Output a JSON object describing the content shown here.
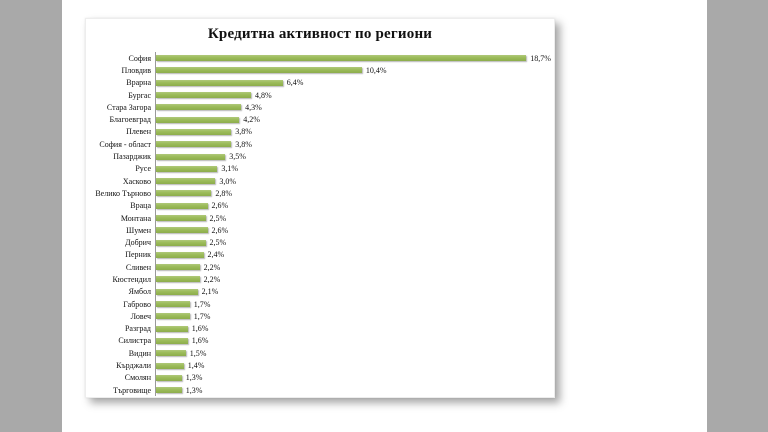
{
  "page": {
    "outer_background_color": "#a9a9a9",
    "page_background_color": "#ffffff",
    "panel_background_color": "#ffffff"
  },
  "chart_data": {
    "type": "bar",
    "orientation": "horizontal",
    "title": "Кредитна активност по региони",
    "categories": [
      "София",
      "Пловдив",
      "Врарна",
      "Бургас",
      "Стара Загора",
      "Благоевград",
      "Плевен",
      "София - област",
      "Пазарджик",
      "Русе",
      "Хасково",
      "Велико Търново",
      "Враца",
      "Монтана",
      "Шумен",
      "Добрич",
      "Перник",
      "Сливен",
      "Кюстендил",
      "Ямбол",
      "Габрово",
      "Ловеч",
      "Разград",
      "Силистра",
      "Видин",
      "Кърджали",
      "Смолян",
      "Търговище"
    ],
    "values": [
      18.7,
      10.4,
      6.4,
      4.8,
      4.3,
      4.2,
      3.8,
      3.8,
      3.5,
      3.1,
      3.0,
      2.8,
      2.6,
      2.5,
      2.6,
      2.5,
      2.4,
      2.2,
      2.2,
      2.1,
      1.7,
      1.7,
      1.6,
      1.6,
      1.5,
      1.4,
      1.3,
      1.3
    ],
    "value_labels": [
      "18,7%",
      "10,4%",
      "6,4%",
      "4,8%",
      "4,3%",
      "4,2%",
      "3,8%",
      "3,8%",
      "3,5%",
      "3,1%",
      "3,0%",
      "2,8%",
      "2,6%",
      "2,5%",
      "2,6%",
      "2,5%",
      "2,4%",
      "2,2%",
      "2,2%",
      "2,1%",
      "1,7%",
      "1,7%",
      "1,6%",
      "1,6%",
      "1,5%",
      "1,4%",
      "1,3%",
      "1,3%"
    ],
    "unit": "%",
    "xlim": [
      0,
      20
    ],
    "grid": false,
    "legend": false,
    "bar_color": "#9bbb59",
    "axis_line_color": "#9a9a9a"
  }
}
